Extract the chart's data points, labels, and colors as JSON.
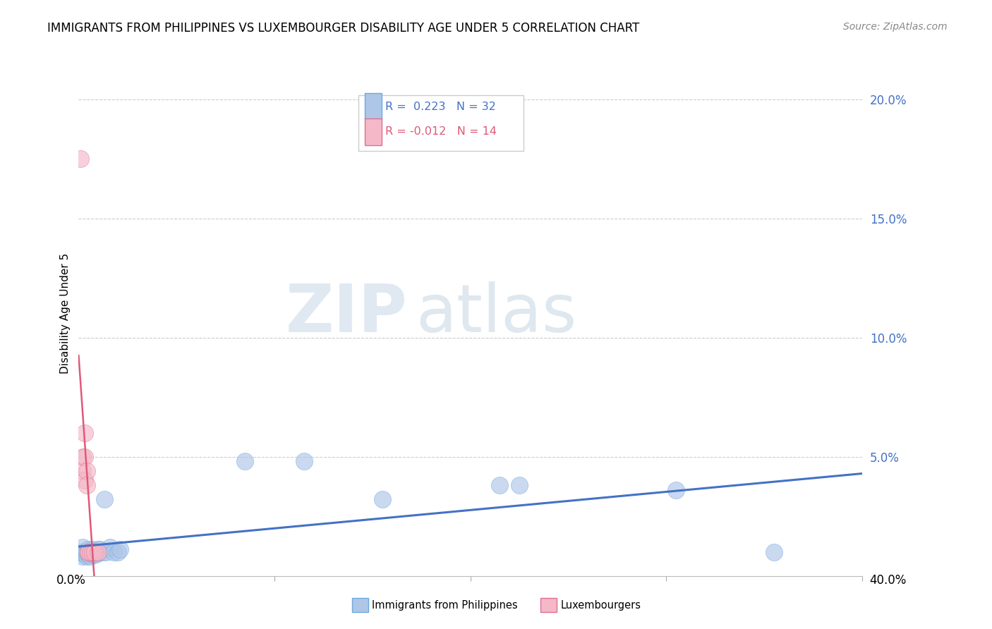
{
  "title": "IMMIGRANTS FROM PHILIPPINES VS LUXEMBOURGER DISABILITY AGE UNDER 5 CORRELATION CHART",
  "source": "Source: ZipAtlas.com",
  "ylabel": "Disability Age Under 5",
  "watermark_zip": "ZIP",
  "watermark_atlas": "atlas",
  "series_philippines": {
    "color": "#aec6e8",
    "edge_color": "#6fa8dc",
    "line_color": "#4472c4",
    "R": 0.223,
    "N": 32,
    "x": [
      0.001,
      0.002,
      0.002,
      0.003,
      0.003,
      0.004,
      0.004,
      0.005,
      0.005,
      0.006,
      0.006,
      0.007,
      0.007,
      0.008,
      0.009,
      0.01,
      0.01,
      0.011,
      0.012,
      0.013,
      0.014,
      0.016,
      0.018,
      0.02,
      0.021,
      0.085,
      0.115,
      0.155,
      0.215,
      0.225,
      0.305,
      0.355
    ],
    "y": [
      0.01,
      0.008,
      0.012,
      0.009,
      0.01,
      0.008,
      0.01,
      0.009,
      0.011,
      0.008,
      0.01,
      0.009,
      0.011,
      0.009,
      0.009,
      0.01,
      0.011,
      0.011,
      0.01,
      0.032,
      0.01,
      0.012,
      0.01,
      0.01,
      0.011,
      0.048,
      0.048,
      0.032,
      0.038,
      0.038,
      0.036,
      0.01
    ]
  },
  "series_luxembourgers": {
    "color": "#f4b8c8",
    "edge_color": "#e07090",
    "line_color": "#e05878",
    "R": -0.012,
    "N": 14,
    "x": [
      0.001,
      0.002,
      0.002,
      0.003,
      0.003,
      0.003,
      0.004,
      0.004,
      0.005,
      0.005,
      0.006,
      0.007,
      0.008,
      0.01
    ],
    "y": [
      0.175,
      0.05,
      0.044,
      0.06,
      0.05,
      0.04,
      0.044,
      0.038,
      0.01,
      0.01,
      0.01,
      0.01,
      0.01,
      0.01
    ]
  },
  "xlim": [
    0.0,
    0.4
  ],
  "ylim": [
    0.0,
    0.22
  ],
  "yticks": [
    0.05,
    0.1,
    0.15,
    0.2
  ],
  "ytick_labels": [
    "5.0%",
    "10.0%",
    "15.0%",
    "20.0%"
  ],
  "xticks": [
    0.0,
    0.1,
    0.2,
    0.3,
    0.4
  ],
  "tick_color": "#4472c4",
  "grid_color": "#cccccc",
  "background_color": "#ffffff",
  "title_fontsize": 12,
  "source_fontsize": 10,
  "axis_label_fontsize": 11,
  "tick_fontsize": 12,
  "legend_box_color": "#ffffff",
  "legend_border_color": "#cccccc"
}
